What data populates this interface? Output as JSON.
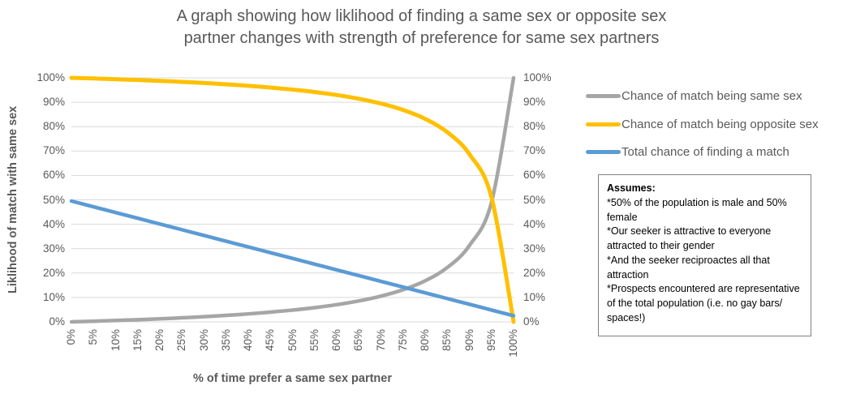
{
  "title": {
    "line1": "A graph showing how liklihood of finding a same sex or opposite sex",
    "line2": "partner changes with strength of preference for same sex partners"
  },
  "y_axis": {
    "title": "Liklihood of match with same sex",
    "ticks": [
      "100%",
      "90%",
      "80%",
      "70%",
      "60%",
      "50%",
      "40%",
      "30%",
      "20%",
      "10%",
      "0%"
    ]
  },
  "x_axis": {
    "title": "% of time prefer a same sex partner",
    "ticks": [
      "0%",
      "5%",
      "10%",
      "15%",
      "20%",
      "25%",
      "30%",
      "35%",
      "40%",
      "45%",
      "50%",
      "55%",
      "60%",
      "65%",
      "70%",
      "75%",
      "80%",
      "85%",
      "90%",
      "95%",
      "100%"
    ]
  },
  "legend": {
    "items": [
      {
        "label": "Chance of match being same sex",
        "color": "#A6A6A6"
      },
      {
        "label": "Chance of match being opposite sex",
        "color": "#FFC000"
      },
      {
        "label": "Total chance of finding a match",
        "color": "#5B9BD5"
      }
    ]
  },
  "assumes": {
    "heading": "Assumes:",
    "lines": [
      "*50% of the population is male and 50% female",
      "*Our seeker is attractive to everyone attracted to their gender",
      "*And the seeker reciproactes all that attraction",
      "*Prospects encountered are representative of the total population (i.e. no gay bars/ spaces!)"
    ]
  },
  "colors": {
    "gridline": "#D9D9D9",
    "text": "#595959",
    "series_same": "#A6A6A6",
    "series_opposite": "#FFC000",
    "series_total": "#5B9BD5",
    "assumes_border": "#808080"
  },
  "chart_data": {
    "type": "line",
    "title": "A graph showing how liklihood of finding a same sex or opposite sex partner changes with strength of preference for same sex partners",
    "xlabel": "% of time prefer a same sex partner",
    "ylabel": "Liklihood of match with same sex",
    "x_unit": "%",
    "y_unit": "%",
    "xlim": [
      0,
      100
    ],
    "ylim": [
      0,
      100
    ],
    "x_tick_step": 5,
    "y_tick_step": 10,
    "grid": "horizontal",
    "legend_position": "right",
    "line_style": "smooth",
    "x": [
      0,
      5,
      10,
      15,
      20,
      25,
      30,
      35,
      40,
      45,
      50,
      55,
      60,
      65,
      70,
      75,
      80,
      85,
      90,
      95,
      100
    ],
    "series": [
      {
        "name": "Chance of match being same sex",
        "color": "#A6A6A6",
        "values": [
          0,
          0.27,
          0.56,
          0.88,
          1.25,
          1.66,
          2.12,
          2.65,
          3.26,
          3.97,
          4.81,
          5.81,
          7.04,
          8.58,
          10.54,
          13.16,
          16.81,
          22.25,
          31.25,
          48.97,
          100
        ]
      },
      {
        "name": "Chance of match being opposite sex",
        "color": "#FFC000",
        "values": [
          100,
          99.73,
          99.44,
          99.12,
          98.75,
          98.34,
          97.88,
          97.35,
          96.74,
          96.03,
          95.19,
          94.19,
          92.96,
          91.42,
          89.46,
          86.84,
          83.19,
          77.75,
          68.75,
          51.03,
          0
        ]
      },
      {
        "name": "Total chance of finding a match",
        "color": "#5B9BD5",
        "values": [
          49.5,
          47.15,
          44.8,
          42.45,
          40.1,
          37.75,
          35.4,
          33.05,
          30.7,
          28.35,
          26.0,
          23.65,
          21.3,
          18.95,
          16.6,
          14.25,
          11.9,
          9.55,
          7.2,
          4.85,
          2.5
        ]
      }
    ]
  }
}
